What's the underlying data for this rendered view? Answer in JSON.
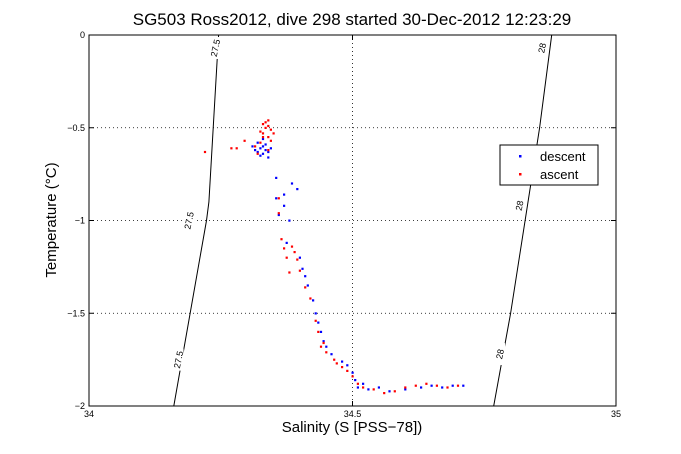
{
  "chart_data": {
    "type": "scatter",
    "title": "SG503 Ross2012, dive 298 started 30-Dec-2012 12:23:29",
    "xlabel": "Salinity (S [PSS−78])",
    "ylabel": "Temperature (°C)",
    "xlim": [
      34,
      35
    ],
    "ylim": [
      -2,
      0
    ],
    "x_ticks": [
      34,
      34.5,
      35
    ],
    "x_tick_labels": [
      "34",
      "34.5",
      "35"
    ],
    "y_ticks": [
      -2,
      -1.5,
      -1,
      -0.5,
      0
    ],
    "y_tick_labels": [
      "−2",
      "−1.5",
      "−1",
      "−0.5",
      "0"
    ],
    "grid": true,
    "legend_position": "right",
    "series": [
      {
        "name": "descent",
        "color": "#0000ff",
        "points": [
          [
            34.31,
            -0.6
          ],
          [
            34.315,
            -0.62
          ],
          [
            34.32,
            -0.63
          ],
          [
            34.325,
            -0.61
          ],
          [
            34.33,
            -0.64
          ],
          [
            34.32,
            -0.58
          ],
          [
            34.33,
            -0.6
          ],
          [
            34.335,
            -0.62
          ],
          [
            34.325,
            -0.65
          ],
          [
            34.34,
            -0.63
          ],
          [
            34.34,
            -0.66
          ],
          [
            34.335,
            -0.59
          ],
          [
            34.33,
            -0.56
          ],
          [
            34.345,
            -0.61
          ],
          [
            34.355,
            -0.77
          ],
          [
            34.355,
            -0.88
          ],
          [
            34.37,
            -0.92
          ],
          [
            34.36,
            -0.97
          ],
          [
            34.38,
            -1.0
          ],
          [
            34.37,
            -0.86
          ],
          [
            34.385,
            -0.8
          ],
          [
            34.395,
            -0.83
          ],
          [
            34.375,
            -1.12
          ],
          [
            34.4,
            -1.2
          ],
          [
            34.405,
            -1.26
          ],
          [
            34.41,
            -1.3
          ],
          [
            34.415,
            -1.35
          ],
          [
            34.425,
            -1.43
          ],
          [
            34.43,
            -1.5
          ],
          [
            34.435,
            -1.55
          ],
          [
            34.44,
            -1.6
          ],
          [
            34.445,
            -1.65
          ],
          [
            34.45,
            -1.68
          ],
          [
            34.46,
            -1.72
          ],
          [
            34.48,
            -1.76
          ],
          [
            34.49,
            -1.78
          ],
          [
            34.5,
            -1.82
          ],
          [
            34.505,
            -1.86
          ],
          [
            34.51,
            -1.9
          ],
          [
            34.52,
            -1.88
          ],
          [
            34.53,
            -1.91
          ],
          [
            34.55,
            -1.9
          ],
          [
            34.57,
            -1.92
          ],
          [
            34.6,
            -1.91
          ],
          [
            34.63,
            -1.9
          ],
          [
            34.65,
            -1.89
          ],
          [
            34.67,
            -1.9
          ],
          [
            34.69,
            -1.89
          ],
          [
            34.71,
            -1.89
          ]
        ]
      },
      {
        "name": "ascent",
        "color": "#ff0000",
        "points": [
          [
            34.22,
            -0.63
          ],
          [
            34.27,
            -0.61
          ],
          [
            34.28,
            -0.61
          ],
          [
            34.295,
            -0.57
          ],
          [
            34.325,
            -0.52
          ],
          [
            34.33,
            -0.48
          ],
          [
            34.335,
            -0.5
          ],
          [
            34.33,
            -0.53
          ],
          [
            34.34,
            -0.55
          ],
          [
            34.345,
            -0.57
          ],
          [
            34.33,
            -0.55
          ],
          [
            34.34,
            -0.46
          ],
          [
            34.335,
            -0.47
          ],
          [
            34.34,
            -0.49
          ],
          [
            34.345,
            -0.51
          ],
          [
            34.35,
            -0.53
          ],
          [
            34.325,
            -0.58
          ],
          [
            34.315,
            -0.6
          ],
          [
            34.32,
            -0.64
          ],
          [
            34.34,
            -0.62
          ],
          [
            34.36,
            -0.88
          ],
          [
            34.36,
            -0.96
          ],
          [
            34.365,
            -1.1
          ],
          [
            34.37,
            -1.15
          ],
          [
            34.375,
            -1.2
          ],
          [
            34.38,
            -1.28
          ],
          [
            34.385,
            -1.14
          ],
          [
            34.39,
            -1.17
          ],
          [
            34.395,
            -1.21
          ],
          [
            34.4,
            -1.27
          ],
          [
            34.41,
            -1.36
          ],
          [
            34.42,
            -1.42
          ],
          [
            34.43,
            -1.54
          ],
          [
            34.435,
            -1.6
          ],
          [
            34.445,
            -1.66
          ],
          [
            34.45,
            -1.71
          ],
          [
            34.465,
            -1.75
          ],
          [
            34.48,
            -1.79
          ],
          [
            34.49,
            -1.81
          ],
          [
            34.5,
            -1.84
          ],
          [
            34.51,
            -1.88
          ],
          [
            34.52,
            -1.9
          ],
          [
            34.54,
            -1.91
          ],
          [
            34.56,
            -1.93
          ],
          [
            34.58,
            -1.92
          ],
          [
            34.6,
            -1.9
          ],
          [
            34.62,
            -1.89
          ],
          [
            34.64,
            -1.88
          ],
          [
            34.66,
            -1.89
          ],
          [
            34.68,
            -1.9
          ],
          [
            34.7,
            -1.89
          ],
          [
            34.44,
            -1.68
          ],
          [
            34.47,
            -1.77
          ]
        ]
      }
    ],
    "contours": [
      {
        "label": "27.5",
        "points": [
          [
            34.161,
            -2
          ],
          [
            34.223,
            -1
          ],
          [
            34.2275,
            -0.9
          ],
          [
            34.246,
            0
          ]
        ],
        "label_positions": [
          [
            34.17,
            -1.75
          ],
          [
            34.19,
            -1
          ],
          [
            34.24,
            -0.07
          ]
        ]
      },
      {
        "label": "28",
        "points": [
          [
            34.768,
            -2
          ],
          [
            34.8,
            -1.5
          ],
          [
            34.855,
            -0.5
          ],
          [
            34.878,
            0
          ]
        ],
        "label_positions": [
          [
            34.78,
            -1.72
          ],
          [
            34.817,
            -0.92
          ],
          [
            34.86,
            -0.07
          ]
        ]
      }
    ]
  }
}
